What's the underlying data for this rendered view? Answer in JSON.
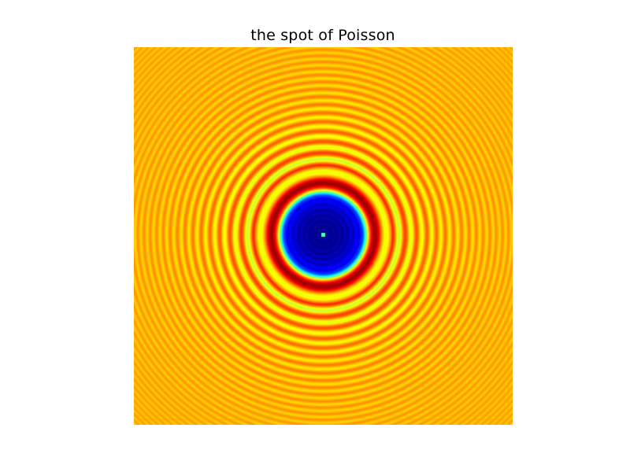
{
  "figure": {
    "title": "the spot of Poisson"
  },
  "image": {
    "description_kind": "diffraction-pattern",
    "colormap": "jet",
    "center_bright_spot": true
  }
}
